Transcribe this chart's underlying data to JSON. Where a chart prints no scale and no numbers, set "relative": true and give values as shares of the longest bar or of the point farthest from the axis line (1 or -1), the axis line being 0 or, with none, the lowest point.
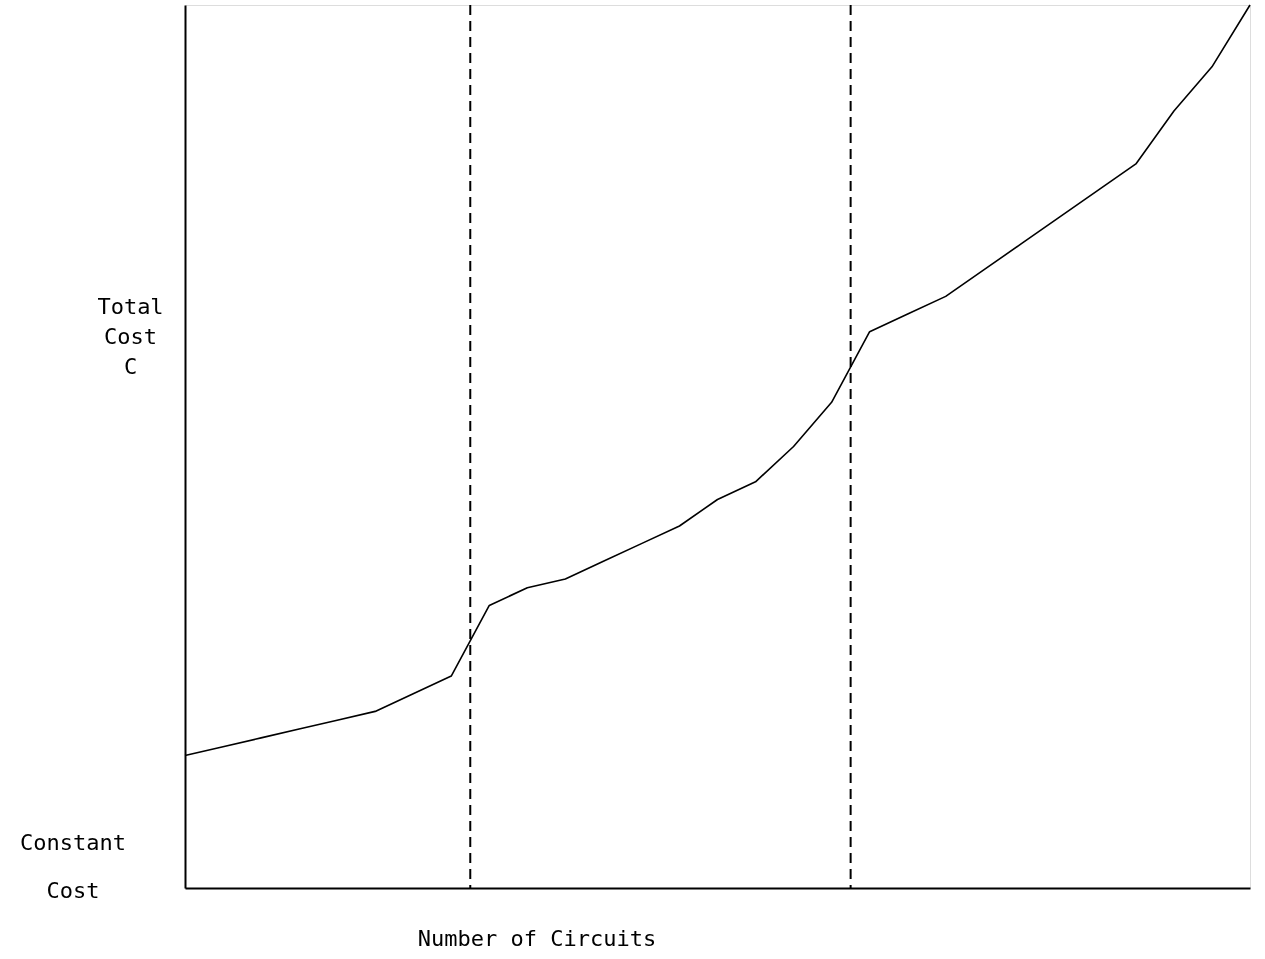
{
  "chart_data": {
    "type": "line",
    "relative": true,
    "xlabel": "Number of Circuits",
    "ylabel": "Total Cost C",
    "annotations": [
      "Constant Cost"
    ],
    "categories": [
      null,
      null,
      null,
      null,
      null,
      null,
      null,
      null,
      null,
      null,
      null,
      null,
      null,
      null,
      null,
      null,
      null,
      null,
      null,
      null,
      null,
      null,
      null,
      null,
      null,
      null,
      null,
      null,
      null
    ],
    "series": [
      {
        "color": "#000000",
        "values": [
          0.15,
          0.16,
          0.17,
          0.18,
          0.19,
          0.2,
          0.22,
          0.24,
          0.32,
          0.34,
          0.35,
          0.37,
          0.39,
          0.41,
          0.44,
          0.46,
          0.5,
          0.55,
          0.63,
          0.65,
          0.67,
          0.7,
          0.73,
          0.76,
          0.79,
          0.82,
          0.88,
          0.93,
          1.0
        ]
      }
    ],
    "grid": false,
    "marker": "none",
    "line_style": "solid"
  }
}
